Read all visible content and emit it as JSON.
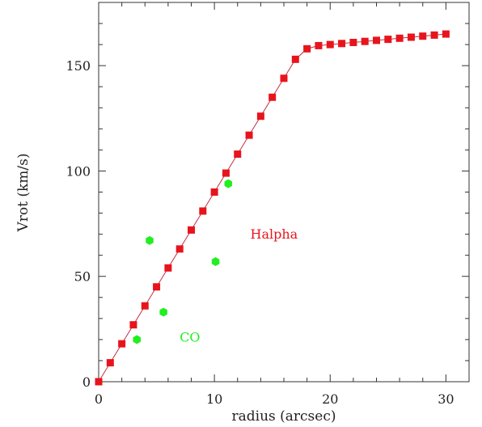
{
  "chart_data": {
    "type": "scatter",
    "title": "",
    "xlabel": "radius (arcsec)",
    "ylabel": "Vrot (km/s)",
    "xlim": [
      0,
      32
    ],
    "ylim": [
      0,
      180
    ],
    "grid": false,
    "x_ticks": [
      0,
      10,
      20,
      30
    ],
    "y_ticks": [
      0,
      50,
      100,
      150
    ],
    "x_minor_step": 2,
    "y_minor_step": 10,
    "series": [
      {
        "name": "Halpha",
        "marker": "square",
        "connected": true,
        "color": "#e8141c",
        "line_color": "#c03040",
        "points": [
          [
            0,
            0
          ],
          [
            1,
            9
          ],
          [
            2,
            18
          ],
          [
            3,
            27
          ],
          [
            4,
            36
          ],
          [
            5,
            45
          ],
          [
            6,
            54
          ],
          [
            7,
            63
          ],
          [
            8,
            72
          ],
          [
            9,
            81
          ],
          [
            10,
            90
          ],
          [
            11,
            99
          ],
          [
            12,
            108
          ],
          [
            13,
            117
          ],
          [
            14,
            126
          ],
          [
            15,
            135
          ],
          [
            16,
            144
          ],
          [
            17,
            153
          ],
          [
            18,
            158
          ],
          [
            19,
            159.5
          ],
          [
            20,
            160
          ],
          [
            21,
            160.5
          ],
          [
            22,
            161
          ],
          [
            23,
            161.5
          ],
          [
            24,
            162
          ],
          [
            25,
            162.5
          ],
          [
            26,
            163
          ],
          [
            27,
            163.5
          ],
          [
            28,
            164
          ],
          [
            29,
            164.5
          ],
          [
            30,
            165
          ]
        ]
      },
      {
        "name": "CO",
        "marker": "hexagon",
        "connected": false,
        "color": "#22ee22",
        "points": [
          [
            3.3,
            20
          ],
          [
            4.4,
            67
          ],
          [
            5.6,
            33
          ],
          [
            10.1,
            57
          ],
          [
            11.2,
            94
          ]
        ]
      }
    ],
    "annotations": [
      {
        "text": "Halpha",
        "x": 13.1,
        "y": 68,
        "color": "#e8141c"
      },
      {
        "text": "CO",
        "x": 7,
        "y": 19,
        "color": "#22ee22"
      }
    ]
  }
}
